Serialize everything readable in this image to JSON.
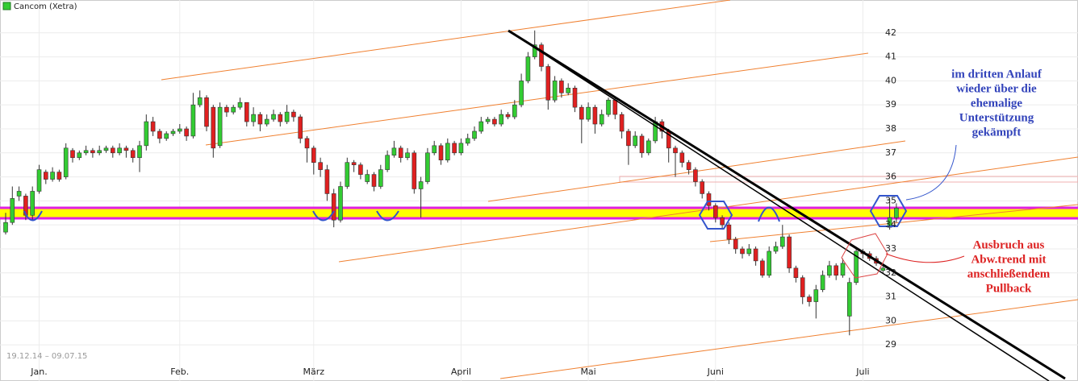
{
  "chart_data": {
    "type": "candlestick",
    "legend": "Cancom (Xetra)",
    "date_range": "19.12.14 – 09.07.15",
    "categories": [
      null,
      null,
      null,
      null,
      null,
      "Jan.",
      null,
      null,
      null,
      null,
      null,
      null,
      null,
      null,
      null,
      null,
      null,
      null,
      null,
      null,
      null,
      null,
      null,
      null,
      null,
      null,
      "Feb.",
      null,
      null,
      null,
      null,
      null,
      null,
      null,
      null,
      null,
      null,
      null,
      null,
      null,
      null,
      null,
      null,
      null,
      null,
      null,
      "März",
      null,
      null,
      null,
      null,
      null,
      null,
      null,
      null,
      null,
      null,
      null,
      null,
      null,
      null,
      null,
      null,
      null,
      null,
      null,
      null,
      null,
      "April",
      null,
      null,
      null,
      null,
      null,
      null,
      null,
      null,
      null,
      null,
      null,
      null,
      null,
      null,
      null,
      null,
      null,
      null,
      "Mai",
      null,
      null,
      null,
      null,
      null,
      null,
      null,
      null,
      null,
      null,
      null,
      null,
      null,
      null,
      null,
      null,
      null,
      null,
      "Juni",
      null,
      null,
      null,
      null,
      null,
      null,
      null,
      null,
      null,
      null,
      null,
      null,
      null,
      null,
      null,
      null,
      null,
      null,
      null,
      null,
      null,
      "Juli",
      null,
      null,
      null,
      null,
      null
    ],
    "series": [
      {
        "name": "Cancom (Xetra)",
        "up_color": "#33cc33",
        "down_color": "#e02020",
        "values": [
          [
            33.7,
            34.5,
            33.6,
            34.1
          ],
          [
            34.1,
            35.6,
            34.0,
            35.1
          ],
          [
            35.2,
            35.6,
            35.0,
            35.4
          ],
          [
            35.2,
            35.3,
            34.2,
            34.4
          ],
          [
            34.4,
            35.6,
            34.2,
            35.4
          ],
          [
            35.4,
            36.5,
            35.3,
            36.3
          ],
          [
            36.2,
            36.3,
            35.7,
            35.9
          ],
          [
            35.9,
            36.4,
            35.8,
            36.2
          ],
          [
            36.2,
            36.3,
            35.8,
            35.9
          ],
          [
            36.0,
            37.4,
            35.9,
            37.2
          ],
          [
            37.1,
            37.2,
            36.6,
            36.8
          ],
          [
            36.8,
            37.1,
            36.7,
            37.0
          ],
          [
            37.0,
            37.3,
            36.9,
            37.1
          ],
          [
            37.1,
            37.2,
            36.8,
            37.0
          ],
          [
            37.0,
            37.3,
            36.9,
            37.1
          ],
          [
            37.1,
            37.3,
            37.0,
            37.2
          ],
          [
            37.2,
            37.3,
            36.8,
            37.0
          ],
          [
            37.0,
            37.4,
            36.9,
            37.2
          ],
          [
            37.2,
            37.3,
            36.8,
            37.1
          ],
          [
            37.1,
            37.2,
            36.6,
            36.8
          ],
          [
            36.8,
            37.5,
            36.2,
            37.3
          ],
          [
            37.3,
            38.6,
            37.1,
            38.3
          ],
          [
            38.3,
            38.5,
            37.7,
            37.9
          ],
          [
            37.9,
            38.0,
            37.4,
            37.6
          ],
          [
            37.6,
            37.9,
            37.5,
            37.8
          ],
          [
            37.8,
            38.0,
            37.7,
            37.9
          ],
          [
            37.9,
            38.2,
            37.8,
            38.0
          ],
          [
            38.0,
            38.1,
            37.5,
            37.7
          ],
          [
            37.7,
            39.5,
            37.6,
            39.0
          ],
          [
            39.0,
            39.6,
            38.9,
            39.3
          ],
          [
            39.3,
            39.4,
            37.9,
            38.1
          ],
          [
            38.9,
            39.0,
            36.8,
            37.2
          ],
          [
            37.3,
            39.1,
            37.2,
            38.9
          ],
          [
            38.9,
            39.0,
            38.5,
            38.7
          ],
          [
            38.7,
            39.0,
            38.6,
            38.9
          ],
          [
            38.9,
            39.3,
            38.8,
            39.1
          ],
          [
            39.1,
            39.1,
            38.1,
            38.3
          ],
          [
            38.3,
            38.9,
            38.1,
            38.6
          ],
          [
            38.6,
            38.7,
            37.9,
            38.2
          ],
          [
            38.2,
            38.6,
            38.1,
            38.4
          ],
          [
            38.4,
            38.8,
            38.3,
            38.6
          ],
          [
            38.6,
            38.7,
            38.1,
            38.3
          ],
          [
            38.3,
            39.0,
            38.2,
            38.7
          ],
          [
            38.7,
            38.8,
            38.3,
            38.5
          ],
          [
            38.5,
            38.6,
            37.4,
            37.6
          ],
          [
            37.6,
            37.7,
            36.6,
            37.2
          ],
          [
            37.2,
            37.3,
            36.1,
            36.6
          ],
          [
            36.6,
            36.8,
            36.0,
            36.3
          ],
          [
            36.3,
            36.5,
            35.0,
            35.3
          ],
          [
            35.3,
            35.5,
            33.9,
            34.2
          ],
          [
            34.2,
            35.8,
            34.1,
            35.6
          ],
          [
            35.6,
            36.8,
            35.5,
            36.6
          ],
          [
            36.6,
            36.7,
            36.2,
            36.5
          ],
          [
            36.5,
            36.6,
            35.9,
            36.1
          ],
          [
            35.8,
            36.3,
            35.7,
            36.1
          ],
          [
            36.1,
            36.2,
            35.4,
            35.6
          ],
          [
            35.6,
            36.5,
            35.5,
            36.3
          ],
          [
            36.3,
            37.1,
            36.2,
            36.9
          ],
          [
            36.9,
            37.5,
            36.8,
            37.2
          ],
          [
            37.2,
            37.3,
            36.6,
            36.8
          ],
          [
            36.8,
            37.2,
            36.7,
            37.0
          ],
          [
            37.0,
            37.1,
            35.3,
            35.5
          ],
          [
            35.5,
            36.0,
            34.3,
            35.8
          ],
          [
            35.8,
            37.2,
            35.7,
            37.0
          ],
          [
            37.0,
            37.5,
            36.9,
            37.3
          ],
          [
            37.3,
            37.4,
            36.5,
            36.7
          ],
          [
            36.7,
            37.6,
            36.6,
            37.4
          ],
          [
            37.4,
            37.5,
            36.9,
            37.0
          ],
          [
            37.0,
            37.6,
            36.9,
            37.4
          ],
          [
            37.4,
            37.8,
            37.3,
            37.6
          ],
          [
            37.6,
            38.1,
            37.5,
            37.9
          ],
          [
            37.9,
            38.5,
            37.8,
            38.3
          ],
          [
            38.3,
            38.5,
            38.2,
            38.4
          ],
          [
            38.4,
            38.5,
            38.1,
            38.2
          ],
          [
            38.2,
            38.8,
            38.1,
            38.6
          ],
          [
            38.6,
            38.7,
            38.4,
            38.5
          ],
          [
            38.5,
            39.2,
            38.4,
            39.0
          ],
          [
            39.0,
            40.3,
            38.9,
            40.0
          ],
          [
            40.0,
            41.2,
            39.9,
            41.0
          ],
          [
            41.0,
            42.1,
            40.9,
            41.5
          ],
          [
            41.5,
            41.6,
            40.4,
            40.6
          ],
          [
            40.6,
            40.7,
            38.8,
            39.2
          ],
          [
            39.2,
            40.2,
            39.1,
            40.0
          ],
          [
            40.0,
            40.1,
            39.3,
            39.5
          ],
          [
            39.5,
            39.9,
            39.4,
            39.7
          ],
          [
            39.7,
            39.8,
            38.7,
            38.9
          ],
          [
            38.9,
            39.0,
            37.4,
            38.4
          ],
          [
            38.4,
            39.1,
            38.3,
            38.9
          ],
          [
            38.9,
            39.0,
            37.8,
            38.2
          ],
          [
            38.2,
            38.8,
            38.1,
            38.6
          ],
          [
            38.6,
            39.3,
            38.5,
            39.2
          ],
          [
            39.2,
            39.3,
            38.4,
            38.6
          ],
          [
            38.6,
            38.7,
            37.6,
            37.9
          ],
          [
            37.9,
            38.0,
            36.5,
            37.3
          ],
          [
            37.3,
            37.9,
            37.2,
            37.7
          ],
          [
            37.7,
            37.8,
            36.8,
            37.0
          ],
          [
            37.0,
            37.6,
            36.9,
            37.5
          ],
          [
            37.5,
            38.5,
            37.4,
            38.3
          ],
          [
            38.3,
            38.4,
            37.6,
            37.9
          ],
          [
            37.9,
            38.0,
            36.6,
            37.2
          ],
          [
            37.2,
            37.3,
            36.0,
            37.0
          ],
          [
            37.0,
            37.1,
            36.4,
            36.6
          ],
          [
            36.6,
            36.7,
            36.1,
            36.3
          ],
          [
            36.3,
            36.4,
            35.6,
            35.8
          ],
          [
            35.8,
            35.9,
            35.1,
            35.3
          ],
          [
            35.3,
            35.4,
            34.6,
            34.8
          ],
          [
            34.8,
            34.9,
            34.1,
            34.3
          ],
          [
            34.3,
            34.4,
            33.8,
            34.0
          ],
          [
            34.0,
            34.1,
            33.2,
            33.4
          ],
          [
            33.4,
            33.5,
            32.8,
            33.0
          ],
          [
            33.0,
            33.1,
            32.6,
            32.8
          ],
          [
            32.8,
            33.2,
            32.7,
            33.0
          ],
          [
            33.0,
            33.1,
            32.3,
            32.5
          ],
          [
            32.5,
            32.6,
            31.8,
            31.9
          ],
          [
            31.9,
            33.1,
            31.8,
            32.9
          ],
          [
            32.9,
            33.3,
            32.8,
            33.1
          ],
          [
            33.1,
            34.0,
            33.0,
            33.5
          ],
          [
            33.5,
            33.6,
            32.0,
            32.2
          ],
          [
            32.2,
            32.3,
            31.6,
            31.8
          ],
          [
            31.8,
            31.9,
            30.7,
            31.0
          ],
          [
            31.0,
            31.1,
            30.6,
            30.8
          ],
          [
            30.8,
            31.5,
            30.1,
            31.3
          ],
          [
            31.3,
            32.1,
            31.2,
            31.9
          ],
          [
            31.9,
            32.5,
            31.8,
            32.3
          ],
          [
            32.3,
            32.4,
            31.7,
            31.9
          ],
          [
            31.9,
            32.6,
            31.8,
            32.4
          ],
          [
            30.2,
            31.8,
            29.4,
            31.6
          ],
          [
            31.6,
            33.0,
            31.5,
            32.9
          ],
          [
            32.9,
            33.0,
            32.6,
            32.8
          ],
          [
            32.8,
            32.9,
            32.5,
            32.6
          ],
          [
            32.6,
            32.7,
            32.3,
            32.4
          ],
          [
            32.1,
            32.3,
            32.0,
            32.2
          ],
          [
            33.9,
            35.1,
            33.8,
            34.3
          ],
          [
            34.3,
            34.9,
            34.1,
            34.7
          ]
        ]
      }
    ],
    "ylim": [
      28.1,
      43.1
    ],
    "yticks": [
      29,
      30,
      31,
      32,
      33,
      34,
      35,
      36,
      37,
      38,
      39,
      40,
      41,
      42
    ],
    "grid": true,
    "annotations": [
      {
        "color": "#3344bb",
        "lines": [
          "im dritten Anlauf",
          "wieder über die",
          "ehemalige",
          "Unterstützung",
          "gekämpft"
        ]
      },
      {
        "color": "#dd2222",
        "lines": [
          "Ausbruch aus",
          "Abw.trend mit",
          "anschließendem",
          "Pullback"
        ]
      }
    ]
  }
}
